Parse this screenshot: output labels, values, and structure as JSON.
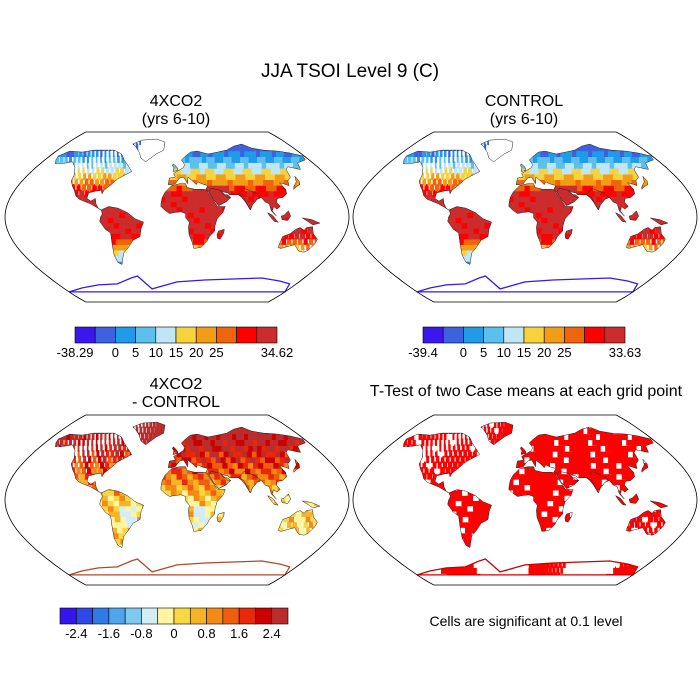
{
  "figure": {
    "title": "JJA TSOI Level 9 (C)",
    "note": "Cells are significant at 0.1 level"
  },
  "chart_data": [
    {
      "type": "heatmap",
      "panel": "top-left",
      "title_line1": "4XCO2",
      "title_line2": "(yrs 6-10)",
      "projection": "robinson world map",
      "colorbar": {
        "colors": [
          "#3b17ee",
          "#3d62e0",
          "#1f9be8",
          "#5dc0ec",
          "#bfe6f5",
          "#f6d33c",
          "#f39c16",
          "#f0640a",
          "#ff0000",
          "#cc2c2c"
        ],
        "tick_labels": [
          "-38.29",
          "0",
          "5",
          "10",
          "15",
          "20",
          "25",
          "34.62"
        ]
      }
    },
    {
      "type": "heatmap",
      "panel": "top-right",
      "title_line1": "CONTROL",
      "title_line2": "(yrs 6-10)",
      "projection": "robinson world map",
      "colorbar": {
        "colors": [
          "#3b17ee",
          "#3d62e0",
          "#1f9be8",
          "#5dc0ec",
          "#bfe6f5",
          "#f6d33c",
          "#f39c16",
          "#f0640a",
          "#ff0000",
          "#cc2c2c"
        ],
        "tick_labels": [
          "-39.4",
          "0",
          "5",
          "10",
          "15",
          "20",
          "25",
          "33.63"
        ]
      }
    },
    {
      "type": "heatmap",
      "panel": "bottom-left",
      "title_line1": "4XCO2",
      "title_line2": "- CONTROL",
      "projection": "robinson world map",
      "colorbar": {
        "colors": [
          "#3515ee",
          "#2f48e8",
          "#2e7be6",
          "#4ea5ec",
          "#7ec8ef",
          "#d2edf6",
          "#fff5a0",
          "#f7d841",
          "#f5b326",
          "#f38a16",
          "#f05d0c",
          "#e9270b",
          "#cc0000",
          "#bb2c2c"
        ],
        "tick_labels": [
          "-2.4",
          "-1.6",
          "-0.8",
          "0",
          "0.8",
          "1.6",
          "2.4"
        ]
      }
    },
    {
      "type": "heatmap",
      "panel": "bottom-right",
      "title_line1": "T-Test of two Case means at each grid point",
      "title_line2": "",
      "projection": "robinson world map",
      "colorbar": null
    }
  ]
}
